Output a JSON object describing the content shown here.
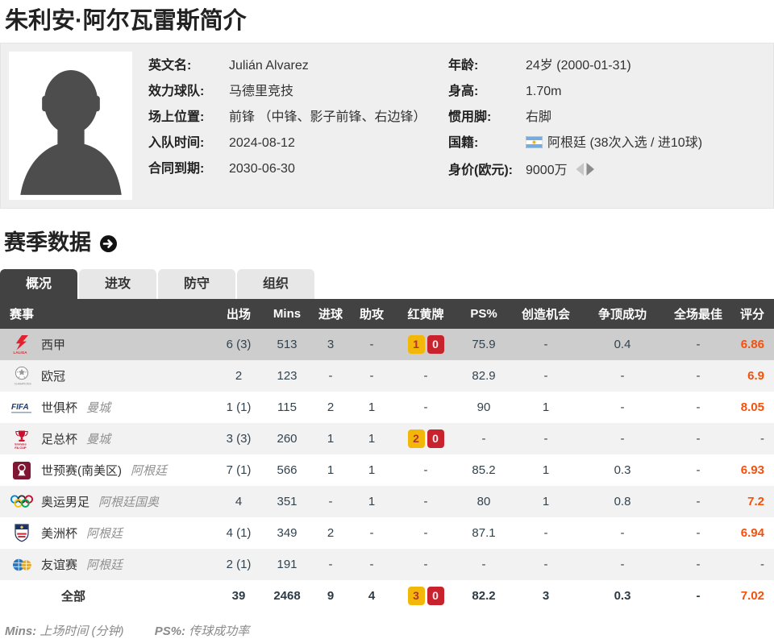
{
  "page": {
    "title": "朱利安·阿尔瓦雷斯简介"
  },
  "profile": {
    "left": [
      {
        "label": "英文名:",
        "value": "Julián Alvarez"
      },
      {
        "label": "效力球队:",
        "value": "马德里竞技"
      },
      {
        "label": "场上位置:",
        "value": "前锋 （中锋、影子前锋、右边锋）"
      },
      {
        "label": "入队时间:",
        "value": "2024-08-12"
      },
      {
        "label": "合同到期:",
        "value": "2030-06-30"
      }
    ],
    "right": [
      {
        "label": "年龄:",
        "value": "24岁  (2000-01-31)"
      },
      {
        "label": "身高:",
        "value": "1.70m"
      },
      {
        "label": "惯用脚:",
        "value": "右脚"
      },
      {
        "label": "国籍:",
        "value": "阿根廷 (38次入选 / 进10球)",
        "flag": "argentina-flag-icon"
      },
      {
        "label": "身价(欧元):",
        "value": "9000万",
        "arrows": "value-trend-arrows-icon"
      }
    ]
  },
  "season": {
    "heading": "赛季数据",
    "tabs": [
      {
        "label": "概况",
        "active": true
      },
      {
        "label": "进攻",
        "active": false
      },
      {
        "label": "防守",
        "active": false
      },
      {
        "label": "组织",
        "active": false
      }
    ],
    "table": {
      "headers": [
        "赛事",
        "出场",
        "Mins",
        "进球",
        "助攻",
        "红黄牌",
        "PS%",
        "创造机会",
        "争顶成功",
        "全场最佳",
        "评分"
      ],
      "rows": [
        {
          "icon": "laliga-icon",
          "competition": "西甲",
          "team": "",
          "apps": "6 (3)",
          "mins": "513",
          "goals": "3",
          "assists": "-",
          "cards": {
            "yellow": "1",
            "red": "0"
          },
          "ps": "75.9",
          "chances": "-",
          "aerial": "0.4",
          "motm": "-",
          "rating": "6.86",
          "highlight": true
        },
        {
          "icon": "ucl-icon",
          "competition": "欧冠",
          "team": "",
          "apps": "2",
          "mins": "123",
          "goals": "-",
          "assists": "-",
          "cards": null,
          "ps": "82.9",
          "chances": "-",
          "aerial": "-",
          "motm": "-",
          "rating": "6.9"
        },
        {
          "icon": "fifa-icon",
          "competition": "世俱杯",
          "team": "曼城",
          "apps": "1 (1)",
          "mins": "115",
          "goals": "2",
          "assists": "1",
          "cards": null,
          "ps": "90",
          "chances": "1",
          "aerial": "-",
          "motm": "-",
          "rating": "8.05"
        },
        {
          "icon": "facup-icon",
          "competition": "足总杯",
          "team": "曼城",
          "apps": "3 (3)",
          "mins": "260",
          "goals": "1",
          "assists": "1",
          "cards": {
            "yellow": "2",
            "red": "0"
          },
          "ps": "-",
          "chances": "-",
          "aerial": "-",
          "motm": "-",
          "rating": "-"
        },
        {
          "icon": "wcq-icon",
          "competition": "世预赛(南美区)",
          "team": "阿根廷",
          "apps": "7 (1)",
          "mins": "566",
          "goals": "1",
          "assists": "1",
          "cards": null,
          "ps": "85.2",
          "chances": "1",
          "aerial": "0.3",
          "motm": "-",
          "rating": "6.93"
        },
        {
          "icon": "olympics-icon",
          "competition": "奥运男足",
          "team": "阿根廷国奥",
          "apps": "4",
          "mins": "351",
          "goals": "-",
          "assists": "1",
          "cards": null,
          "ps": "80",
          "chances": "1",
          "aerial": "0.8",
          "motm": "-",
          "rating": "7.2"
        },
        {
          "icon": "copa-icon",
          "competition": "美洲杯",
          "team": "阿根廷",
          "apps": "4 (1)",
          "mins": "349",
          "goals": "2",
          "assists": "-",
          "cards": null,
          "ps": "87.1",
          "chances": "-",
          "aerial": "-",
          "motm": "-",
          "rating": "6.94"
        },
        {
          "icon": "friendly-icon",
          "competition": "友谊赛",
          "team": "阿根廷",
          "apps": "2 (1)",
          "mins": "191",
          "goals": "-",
          "assists": "-",
          "cards": null,
          "ps": "-",
          "chances": "-",
          "aerial": "-",
          "motm": "-",
          "rating": "-"
        },
        {
          "icon": "",
          "competition": "全部",
          "team": "",
          "apps": "39",
          "mins": "2468",
          "goals": "9",
          "assists": "4",
          "cards": {
            "yellow": "3",
            "red": "0"
          },
          "ps": "82.2",
          "chances": "3",
          "aerial": "0.3",
          "motm": "-",
          "rating": "7.02",
          "total": true
        }
      ]
    },
    "footnotes": [
      {
        "abbr": "Mins:",
        "desc": "上场时间 (分钟)"
      },
      {
        "abbr": "PS%:",
        "desc": "传球成功率"
      }
    ]
  },
  "icon_text": {
    "laliga": "LALIGA",
    "ucl": "CHAMPIONS",
    "fifa": "FIFA",
    "facup_top": "Emirates",
    "facup": "FA CUP"
  },
  "colors": {
    "rating_accent": "#f4510b",
    "yellow_card": "#f3b70a",
    "red_card": "#c9222f",
    "table_header_bg": "#424242",
    "highlight_row_bg": "#cdcdcd",
    "alt_row_bg": "#f2f2f2",
    "profile_box_bg": "#efefef"
  }
}
